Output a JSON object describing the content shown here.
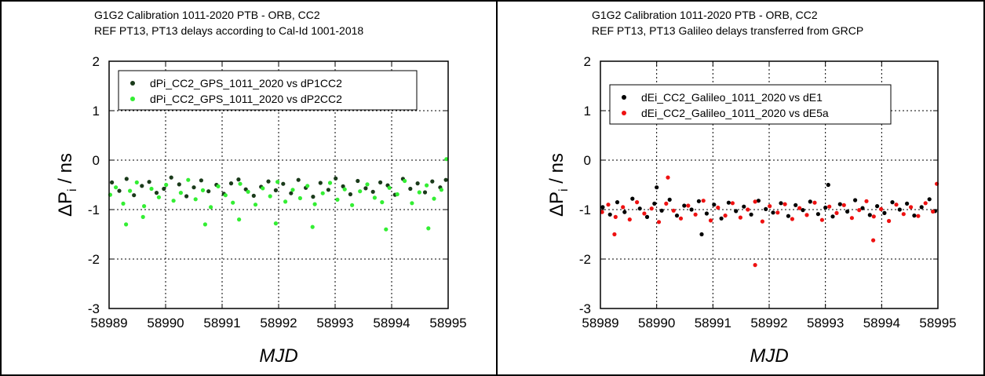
{
  "chart_data": [
    {
      "type": "scatter",
      "title": "G1G2 Calibration 1011-2020 PTB - ORB, CC2",
      "subtitle": "REF PT13, PT13 delays according to Cal-Id 1001-2018",
      "xlabel": "MJD",
      "ylabel_main": "ΔP",
      "ylabel_sub": "i",
      "ylabel_unit": " / ns",
      "xlim": [
        58989,
        58995
      ],
      "ylim": [
        -3,
        2
      ],
      "xticks": [
        "58989",
        "58990",
        "58991",
        "58992",
        "58993",
        "58994",
        "58995"
      ],
      "yticks": [
        "2",
        "1",
        "0",
        "-1",
        "-2",
        "-3"
      ],
      "grid": true,
      "legend_position": "top-left",
      "series": [
        {
          "name": "dPi_CC2_GPS_1011_2020 vs dP1CC2",
          "color": "#1a3a1a",
          "x": [
            58989.05,
            58989.18,
            58989.31,
            58989.44,
            58989.58,
            58989.71,
            58989.84,
            58989.97,
            58990.1,
            58990.24,
            58990.37,
            58990.5,
            58990.63,
            58990.76,
            58990.9,
            58991.03,
            58991.16,
            58991.29,
            58991.42,
            58991.56,
            58991.69,
            58991.82,
            58991.95,
            58992.08,
            58992.22,
            58992.35,
            58992.48,
            58992.61,
            58992.74,
            58992.88,
            58993.01,
            58993.14,
            58993.27,
            58993.4,
            58993.54,
            58993.67,
            58993.8,
            58993.93,
            58994.06,
            58994.2,
            58994.33,
            58994.46,
            58994.59,
            58994.72,
            58994.86,
            58994.96
          ],
          "y": [
            -0.45,
            -0.62,
            -0.38,
            -0.71,
            -0.52,
            -0.44,
            -0.66,
            -0.58,
            -0.35,
            -0.49,
            -0.73,
            -0.55,
            -0.41,
            -0.63,
            -0.5,
            -0.68,
            -0.47,
            -0.39,
            -0.59,
            -0.72,
            -0.54,
            -0.43,
            -0.61,
            -0.48,
            -0.67,
            -0.4,
            -0.56,
            -0.74,
            -0.46,
            -0.6,
            -0.37,
            -0.53,
            -0.69,
            -0.42,
            -0.57,
            -0.64,
            -0.45,
            -0.51,
            -0.7,
            -0.38,
            -0.58,
            -0.47,
            -0.65,
            -0.43,
            -0.55,
            -0.4
          ]
        },
        {
          "name": "dPi_CC2_GPS_1011_2020 vs dP2CC2",
          "color": "#33ee33",
          "x": [
            58989.02,
            58989.12,
            58989.25,
            58989.37,
            58989.49,
            58989.62,
            58989.75,
            58989.88,
            58990.01,
            58990.14,
            58990.27,
            58990.4,
            58990.53,
            58990.66,
            58990.8,
            58990.93,
            58991.06,
            58991.19,
            58991.32,
            58991.46,
            58991.59,
            58991.72,
            58991.85,
            58991.98,
            58992.12,
            58992.25,
            58992.38,
            58992.51,
            58992.64,
            58992.78,
            58992.91,
            58993.04,
            58993.17,
            58993.3,
            58993.44,
            58993.57,
            58993.7,
            58993.83,
            58993.96,
            58994.1,
            58994.23,
            58994.36,
            58994.49,
            58994.62,
            58994.75,
            58994.88,
            58994.97,
            58989.3,
            58989.6,
            58990.7,
            58991.3,
            58991.95,
            58992.6,
            58993.9,
            58994.65
          ],
          "y": [
            -0.7,
            -0.55,
            -0.88,
            -0.62,
            -0.45,
            -0.93,
            -0.58,
            -0.75,
            -0.5,
            -0.82,
            -0.66,
            -0.4,
            -0.79,
            -0.61,
            -0.95,
            -0.53,
            -0.71,
            -0.86,
            -0.48,
            -0.64,
            -0.9,
            -0.57,
            -0.73,
            -0.44,
            -0.84,
            -0.6,
            -0.77,
            -0.52,
            -0.89,
            -0.67,
            -0.46,
            -0.8,
            -0.59,
            -0.91,
            -0.63,
            -0.49,
            -0.76,
            -0.85,
            -0.56,
            -0.69,
            -0.42,
            -0.87,
            -0.65,
            -0.51,
            -0.78,
            -0.6,
            0.02,
            -1.3,
            -1.15,
            -1.3,
            -1.2,
            -1.28,
            -1.35,
            -1.4,
            -1.38
          ]
        }
      ]
    },
    {
      "type": "scatter",
      "title": "G1G2 Calibration 1011-2020 PTB - ORB, CC2",
      "subtitle": "REF PT13, PT13 Galileo delays transferred from GRCP",
      "xlabel": "MJD",
      "ylabel_main": "ΔP",
      "ylabel_sub": "i",
      "ylabel_unit": " / ns",
      "xlim": [
        58989,
        58995
      ],
      "ylim": [
        -3,
        2
      ],
      "xticks": [
        "58989",
        "58990",
        "58991",
        "58992",
        "58993",
        "58994",
        "58995"
      ],
      "yticks": [
        "2",
        "1",
        "0",
        "-1",
        "-2",
        "-3"
      ],
      "grid": true,
      "legend_position": "top-left",
      "series": [
        {
          "name": "dEi_CC2_Galileo_1011_2020 vs dE1",
          "color": "#000000",
          "x": [
            58989.04,
            58989.17,
            58989.3,
            58989.43,
            58989.57,
            58989.7,
            58989.83,
            58989.96,
            58990.09,
            58990.23,
            58990.36,
            58990.49,
            58990.62,
            58990.75,
            58990.89,
            58991.02,
            58991.15,
            58991.28,
            58991.41,
            58991.55,
            58991.68,
            58991.81,
            58991.94,
            58992.07,
            58992.21,
            58992.34,
            58992.47,
            58992.6,
            58992.73,
            58992.87,
            58993.0,
            58993.13,
            58993.26,
            58993.39,
            58993.53,
            58993.66,
            58993.79,
            58993.92,
            58994.05,
            58994.19,
            58994.32,
            58994.45,
            58994.58,
            58994.71,
            58994.85,
            58994.95,
            58990.0,
            58990.8,
            58993.05
          ],
          "y": [
            -0.95,
            -1.1,
            -0.85,
            -1.05,
            -0.78,
            -0.98,
            -1.15,
            -0.88,
            -1.02,
            -0.8,
            -1.12,
            -0.92,
            -1.0,
            -0.83,
            -1.08,
            -0.9,
            -1.18,
            -0.86,
            -1.03,
            -0.94,
            -1.1,
            -0.82,
            -0.99,
            -1.06,
            -0.87,
            -1.13,
            -0.91,
            -1.01,
            -0.84,
            -1.09,
            -0.96,
            -1.14,
            -0.89,
            -1.04,
            -0.81,
            -0.97,
            -1.11,
            -0.93,
            -1.07,
            -0.85,
            -1.0,
            -0.88,
            -1.12,
            -0.95,
            -0.79,
            -1.03,
            -0.55,
            -1.5,
            -0.5
          ]
        },
        {
          "name": "dEi_CC2_Galileo_1011_2020 vs dE5a",
          "color": "#ee1111",
          "x": [
            58989.03,
            58989.14,
            58989.27,
            58989.4,
            58989.52,
            58989.65,
            58989.78,
            58989.91,
            58990.04,
            58990.17,
            58990.3,
            58990.43,
            58990.56,
            58990.69,
            58990.83,
            58990.96,
            58991.09,
            58991.22,
            58991.35,
            58991.49,
            58991.62,
            58991.75,
            58991.88,
            58992.01,
            58992.15,
            58992.28,
            58992.41,
            58992.54,
            58992.67,
            58992.81,
            58992.94,
            58993.07,
            58993.2,
            58993.33,
            58993.47,
            58993.6,
            58993.73,
            58993.86,
            58993.99,
            58994.13,
            58994.26,
            58994.39,
            58994.52,
            58994.65,
            58994.78,
            58994.91,
            58994.98,
            58991.75,
            58990.2,
            58993.85,
            58989.25
          ],
          "y": [
            -1.05,
            -0.9,
            -1.15,
            -0.95,
            -1.2,
            -0.85,
            -1.08,
            -0.98,
            -1.25,
            -0.88,
            -1.02,
            -1.18,
            -0.92,
            -1.1,
            -0.82,
            -1.22,
            -0.96,
            -1.12,
            -0.87,
            -1.16,
            -1.0,
            -0.84,
            -1.24,
            -0.93,
            -1.06,
            -0.89,
            -1.19,
            -0.97,
            -1.11,
            -0.86,
            -1.21,
            -0.94,
            -1.07,
            -0.91,
            -1.17,
            -1.01,
            -0.83,
            -1.14,
            -0.99,
            -1.23,
            -0.9,
            -1.09,
            -0.95,
            -1.13,
            -0.87,
            -1.04,
            -0.48,
            -2.12,
            -0.35,
            -1.62,
            -1.5
          ]
        }
      ]
    }
  ]
}
